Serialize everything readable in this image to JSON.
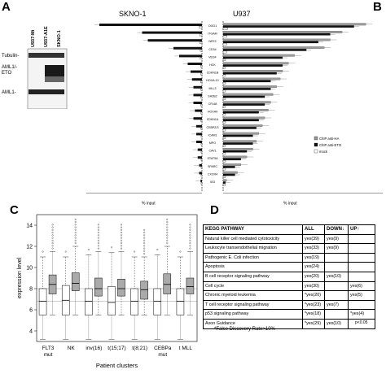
{
  "panels": {
    "a": "A",
    "b": "B",
    "c": "C",
    "d": "D"
  },
  "panel_a": {
    "lanes": [
      "U937-Mt",
      "U937-A1E",
      "SKNO-1"
    ],
    "bands": [
      "Tubulin-",
      "AML1/-\nETO",
      "AML1-"
    ]
  },
  "panel_b": {
    "left_title": "SKNO-1",
    "right_title": "U937",
    "genes": [
      "OGG1",
      "ITGAM",
      "NFE2",
      "CD34",
      "VEGF",
      "HCK",
      "CDKN1B",
      "HOXA-10",
      "MLL3",
      "SH2B2",
      "CFL68",
      "HOXA9",
      "CDKN1A",
      "CEBPZ/3",
      "ICAM1",
      "MPO",
      "CAV1",
      "STAT5A",
      "SPARC",
      "CXCR4",
      "IGG"
    ],
    "xlabel": "% input",
    "legend": [
      "ChIP anti-HA",
      "ChIP anti-ETO",
      "mock"
    ],
    "colors": {
      "anti_ha": "#9a9a9a",
      "anti_eto": "#111111",
      "mock": "#ffffff"
    }
  },
  "panel_c": {
    "ylabel": "expression level",
    "xlabel": "Patient clusters",
    "yticks": [
      "4",
      "6",
      "8",
      "10",
      "12",
      "14"
    ],
    "clusters": [
      "FLT3\nmut",
      "NK",
      "inv(16)",
      "t(15;17)",
      "t(8;21)",
      "CEBPa\nmut",
      "t MLL"
    ]
  },
  "panel_d": {
    "headers": [
      "KEGG PATHWAY",
      "ALL",
      "DOWN↓",
      "UP↑"
    ],
    "rows": [
      [
        "Natural killer cell mediated cytotoxicity",
        "yes(39)",
        "yes(9)",
        ""
      ],
      [
        "Leukocyte transendothelial migration",
        "yes(33)",
        "yes(9)",
        ""
      ],
      [
        "Pathogenic E. Coli infection",
        "yes(19)",
        "",
        ""
      ],
      [
        "Apoptosis",
        "yes(24)",
        "",
        ""
      ],
      [
        "B cell receptor signaling pathway",
        "yes(20)",
        "yes(10)",
        ""
      ],
      [
        "Cell cycle",
        "yes(30)",
        "",
        "yes(6)"
      ],
      [
        "Chronic myeloid leukemia",
        "*yes(20)",
        "",
        "yes(5)"
      ],
      [
        "T cell receptor signaling pathway",
        "*yes(23)",
        "yes(7)",
        ""
      ],
      [
        "p53 signaling pathway",
        "*yes(18)",
        "",
        "*yes(4)"
      ],
      [
        "Axon Guidance",
        "*yes(29)",
        "yes(10)",
        ""
      ]
    ],
    "pvalue_note": "p<0.05",
    "fdr_note": "*False Discovery Rate>10%"
  },
  "chart_data": [
    {
      "type": "bar",
      "panel": "B-SKNO-1",
      "title": "SKNO-1",
      "xlabel": "% input",
      "categories": [
        "OGG1",
        "ITGAM",
        "NFE2",
        "CD34",
        "VEGF",
        "HCK",
        "CDKN1B",
        "HOXA-10",
        "MLL3",
        "SH2B2",
        "CFL68",
        "HOXA9",
        "CDKN1A",
        "CEBPZ/3",
        "ICAM1",
        "MPO",
        "CAV1",
        "STAT5A",
        "SPARC",
        "CXCR4",
        "IGG"
      ],
      "series": [
        {
          "name": "ChIP anti-ETO",
          "values": [
            0.36,
            0.21,
            0.19,
            0.1,
            0.08,
            0.05,
            0.04,
            0.035,
            0.03,
            0.03,
            0.03,
            0.025,
            0.03,
            0.02,
            0.02,
            0.02,
            0.015,
            0.015,
            0.01,
            0.01,
            0.005
          ]
        },
        {
          "name": "mock",
          "values": [
            0.01,
            0.008,
            0.008,
            0.006,
            0.006,
            0.005,
            0.005,
            0.005,
            0.004,
            0.004,
            0.004,
            0.004,
            0.004,
            0.004,
            0.003,
            0.003,
            0.003,
            0.003,
            0.003,
            0.003,
            0.003
          ]
        }
      ]
    },
    {
      "type": "bar",
      "panel": "B-U937",
      "title": "U937",
      "xlabel": "% input",
      "categories": [
        "OGG1",
        "ITGAM",
        "NFE2",
        "CD34",
        "VEGF",
        "HCK",
        "CDKN1B",
        "HOXA-10",
        "MLL3",
        "SH2B2",
        "CFL68",
        "HOXA9",
        "CDKN1A",
        "CEBPZ/3",
        "ICAM1",
        "MPO",
        "CAV1",
        "STAT5A",
        "SPARC",
        "CXCR4",
        "IGG"
      ],
      "series": [
        {
          "name": "ChIP anti-HA",
          "values": [
            1.2,
            1.0,
            0.9,
            0.85,
            0.6,
            0.55,
            0.5,
            0.48,
            0.45,
            0.42,
            0.4,
            0.38,
            0.35,
            0.33,
            0.3,
            0.28,
            0.25,
            0.2,
            0.15,
            0.12,
            0.03
          ]
        },
        {
          "name": "ChIP anti-ETO",
          "values": [
            1.1,
            0.9,
            0.8,
            0.7,
            0.5,
            0.5,
            0.45,
            0.4,
            0.4,
            0.35,
            0.35,
            0.3,
            0.3,
            0.28,
            0.25,
            0.25,
            0.2,
            0.15,
            0.1,
            0.1,
            0.02
          ]
        },
        {
          "name": "mock",
          "values": [
            0.04,
            0.03,
            0.03,
            0.03,
            0.02,
            0.02,
            0.02,
            0.02,
            0.02,
            0.02,
            0.02,
            0.02,
            0.02,
            0.02,
            0.02,
            0.02,
            0.02,
            0.02,
            0.02,
            0.02,
            0.02
          ]
        }
      ]
    },
    {
      "type": "box",
      "panel": "C",
      "xlabel": "Patient clusters",
      "ylabel": "expression level",
      "ylim": [
        3,
        15
      ],
      "categories": [
        "FLT3 mut",
        "NK",
        "inv(16)",
        "t(15;17)",
        "t(8;21)",
        "CEBPa mut",
        "t MLL"
      ],
      "series": [
        {
          "name": "down",
          "boxes": [
            {
              "min": 3.2,
              "q1": 5.5,
              "median": 6.8,
              "q3": 8.0,
              "max": 11.0
            },
            {
              "min": 3.2,
              "q1": 5.5,
              "median": 6.9,
              "q3": 8.3,
              "max": 11.0
            },
            {
              "min": 3.2,
              "q1": 5.5,
              "median": 6.8,
              "q3": 8.0,
              "max": 11.2
            },
            {
              "min": 3.2,
              "q1": 5.5,
              "median": 6.7,
              "q3": 8.2,
              "max": 11.4
            },
            {
              "min": 3.2,
              "q1": 5.5,
              "median": 6.8,
              "q3": 8.0,
              "max": 11.0
            },
            {
              "min": 3.2,
              "q1": 5.5,
              "median": 6.8,
              "q3": 8.0,
              "max": 11.2
            },
            {
              "min": 3.2,
              "q1": 5.5,
              "median": 6.8,
              "q3": 8.0,
              "max": 11.0
            }
          ]
        },
        {
          "name": "up",
          "boxes": [
            {
              "min": 5.5,
              "q1": 7.5,
              "median": 8.4,
              "q3": 9.3,
              "max": 11.5
            },
            {
              "min": 5.5,
              "q1": 7.8,
              "median": 8.5,
              "q3": 9.5,
              "max": 12.0
            },
            {
              "min": 5.5,
              "q1": 7.3,
              "median": 8.0,
              "q3": 9.0,
              "max": 11.5
            },
            {
              "min": 5.5,
              "q1": 7.3,
              "median": 8.0,
              "q3": 8.9,
              "max": 11.5
            },
            {
              "min": 5.5,
              "q1": 7.0,
              "median": 7.9,
              "q3": 8.7,
              "max": 11.0
            },
            {
              "min": 5.5,
              "q1": 7.5,
              "median": 8.4,
              "q3": 9.4,
              "max": 12.0
            },
            {
              "min": 5.5,
              "q1": 7.5,
              "median": 8.2,
              "q3": 9.0,
              "max": 11.5
            }
          ]
        }
      ]
    }
  ]
}
